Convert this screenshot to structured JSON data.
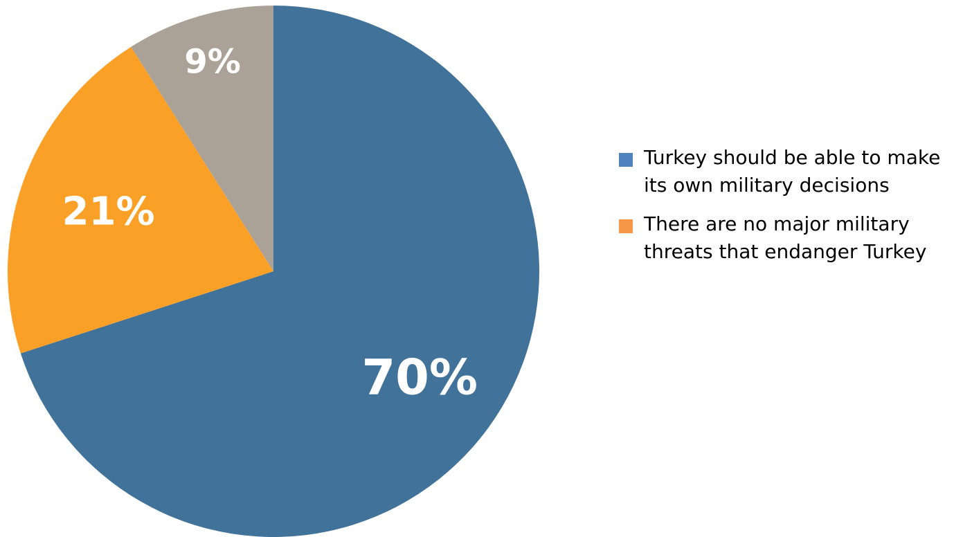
{
  "chart_data": {
    "type": "pie",
    "title": "",
    "legend_position": "right",
    "slices": [
      {
        "label": "Turkey should be able to make its own military decisions",
        "value": 70,
        "display": "70%",
        "color": "#41739a",
        "legend_color": "#4f81bd"
      },
      {
        "label": "There are no major military threats that endanger Turkey",
        "value": 21,
        "display": "21%",
        "color": "#fba026",
        "legend_color": "#f79646"
      },
      {
        "label": "",
        "value": 9,
        "display": "9%",
        "color": "#aba297",
        "legend_color": ""
      }
    ]
  },
  "legend": {
    "items": [
      {
        "text": "Turkey should be able to make its own military decisions",
        "color": "#4f81bd"
      },
      {
        "text": "There are no major military threats that endanger Turkey",
        "color": "#f79646"
      }
    ]
  }
}
